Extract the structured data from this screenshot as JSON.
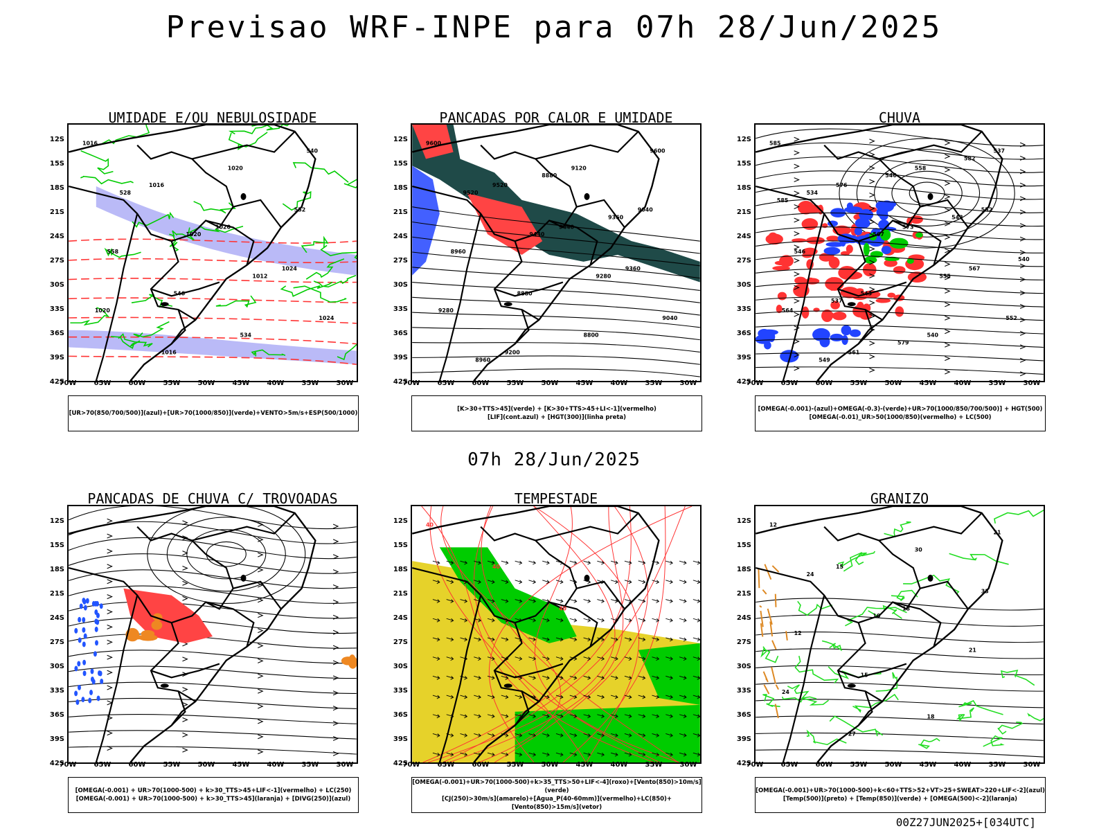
{
  "title": "Previsao WRF-INPE  para 07h 28/Jun/2025",
  "mid_date": "07h 28/Jun/2025",
  "run_label": "00Z27JUN2025+[034UTC]",
  "lat_ticks": [
    "12S",
    "15S",
    "18S",
    "21S",
    "24S",
    "27S",
    "30S",
    "33S",
    "36S",
    "39S",
    "42S"
  ],
  "lon_ticks": [
    "70W",
    "65W",
    "60W",
    "55W",
    "50W",
    "45W",
    "40W",
    "35W",
    "30W"
  ],
  "panels": [
    {
      "title": "UMIDADE E/OU NEBULOSIDADE",
      "legend": [
        "[UR>70(850/700/500)](azul)+[UR>70(1000/850)](verde)+VENTO>5m/s+ESP(500/1000)"
      ],
      "contour_labels": [
        "1016",
        "1016",
        "1020",
        "1024",
        "1020",
        "1016",
        "1020",
        "552",
        "558",
        "546",
        "534",
        "540",
        "528",
        "1020",
        "1012",
        "1024"
      ],
      "colors": {
        "shade": "#a9a9f5",
        "contour": "#00cc00",
        "dash": "#ff3333"
      }
    },
    {
      "title": "PANCADAS POR CALOR E UMIDADE",
      "legend": [
        "[K>30+TTS>45](verde) + [K>30+TTS>45+LI<-1](vermelho)",
        "[LIF](cont.azul) + [HGT(300)](linha preta)"
      ],
      "contour_labels": [
        "9600",
        "9520",
        "9440",
        "9360",
        "9280",
        "9200",
        "9120",
        "9040",
        "8960",
        "8880",
        "8800",
        "9600",
        "9520",
        "9440",
        "9280",
        "9040",
        "8960",
        "8880",
        "9360"
      ],
      "colors": {
        "green": "#1f4a48",
        "red": "#ff4444",
        "blue": "#2244ff"
      }
    },
    {
      "title": "CHUVA",
      "legend": [
        "[OMEGA(-0.001)-(azul)+OMEGA(-0.3)-(verde)+UR>70(1000/850/700/500)] + HGT(500)",
        "[OMEGA(-0.01)_UR>50(1000/850)(vermelho) + LC(500)"
      ],
      "contour_labels": [
        "585",
        "576",
        "573",
        "567",
        "564",
        "561",
        "558",
        "552",
        "546",
        "543",
        "540",
        "537",
        "534",
        "567",
        "555",
        "552",
        "549",
        "546",
        "543",
        "540",
        "537",
        "579",
        "582",
        "585"
      ],
      "colors": {
        "red": "#ff3333",
        "blue": "#2244ff",
        "green": "#00cc00"
      }
    },
    {
      "title": "PANCADAS DE CHUVA C/ TROVOADAS",
      "legend": [
        "[OMEGA(-0.001) + UR>70(1000-500) + k>30_TTS>45+LIF<-1](vermelho) + LC(250)",
        "[OMEGA(-0.001) + UR>70(1000-500) + k>30_TTS>45](laranja) + [DIVG(250)](azul)"
      ],
      "contour_labels": [],
      "colors": {
        "red": "#ff4444",
        "orange": "#ee8822",
        "blue": "#2255ff"
      }
    },
    {
      "title": "TEMPESTADE",
      "legend": [
        "[OMEGA(-0.001)+UR>70(1000-500)+k>35_TTS>50+LIF<-4](roxo)+[Vento(850)>10m/s](verde)",
        "[CJ(250)>30m/s](amarelo)+[Agua_P(40-60mm)](vermelho)+LC(850)+[Vento(850)>15m/s](vetor)"
      ],
      "contour_labels": [
        "40",
        "40",
        "40"
      ],
      "colors": {
        "yellow": "#e6d22a",
        "green": "#00cc00",
        "red": "#ff3333"
      }
    },
    {
      "title": "GRANIZO",
      "legend": [
        "[OMEGA(-0.001)+UR>70(1000-500)+k<60+TTS>52+VT>25+SWEAT>220+LIF<-2](azul)",
        "[Temp(500)](preto) + [Temp(850)](verde) + [OMEGA(500)<-2](laranja)"
      ],
      "contour_labels": [
        "12",
        "15",
        "18",
        "21",
        "24",
        "27",
        "30",
        "33",
        "12",
        "15",
        "18",
        "21",
        "24",
        "10"
      ],
      "colors": {
        "green": "#22dd22",
        "black": "#000000",
        "orange": "#dd8822"
      }
    }
  ]
}
